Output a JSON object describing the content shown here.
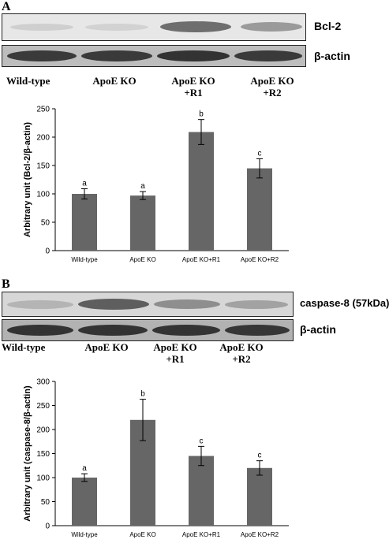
{
  "panel_a": {
    "letter": "A",
    "blot_labels": [
      "Bcl-2",
      "β-actin"
    ],
    "lanes": [
      {
        "line1": "Wild-type",
        "line2": ""
      },
      {
        "line1": "ApoE KO",
        "line2": ""
      },
      {
        "line1": "ApoE KO",
        "line2": "+R1"
      },
      {
        "line1": "ApoE KO",
        "line2": "+R2"
      }
    ]
  },
  "panel_b": {
    "letter": "B",
    "blot_labels": [
      "caspase-8 (57kDa)",
      "β-actin"
    ],
    "lanes": [
      {
        "line1": "Wild-type",
        "line2": ""
      },
      {
        "line1": "ApoE KO",
        "line2": ""
      },
      {
        "line1": "ApoE KO",
        "line2": "+R1"
      },
      {
        "line1": "ApoE KO",
        "line2": "+R2"
      }
    ]
  },
  "chart_data": [
    {
      "type": "bar",
      "title": "",
      "xlabel": "",
      "ylabel": "Arbitrary unit (Bcl-2/β-actin)",
      "categories": [
        "Wild-type",
        "ApoE KO",
        "ApoE KO+R1",
        "ApoE KO+R2"
      ],
      "values": [
        100,
        97,
        209,
        145
      ],
      "errors": [
        9,
        7,
        22,
        17
      ],
      "significance": [
        "a",
        "a",
        "b",
        "c"
      ],
      "ylim": [
        0,
        250
      ],
      "yticks": [
        0,
        50,
        100,
        150,
        200,
        250
      ],
      "bar_color": "#666666",
      "grid": false
    },
    {
      "type": "bar",
      "title": "",
      "xlabel": "",
      "ylabel": "Arbitrary unit (caspase-8/β-actin)",
      "categories": [
        "Wild-type",
        "ApoE KO",
        "ApoE KO+R1",
        "ApoE KO+R2"
      ],
      "values": [
        100,
        220,
        145,
        120
      ],
      "errors": [
        8,
        43,
        20,
        15
      ],
      "significance": [
        "a",
        "b",
        "c",
        "c"
      ],
      "ylim": [
        0,
        300
      ],
      "yticks": [
        0,
        50,
        100,
        150,
        200,
        250,
        300
      ],
      "bar_color": "#666666",
      "grid": false
    }
  ]
}
